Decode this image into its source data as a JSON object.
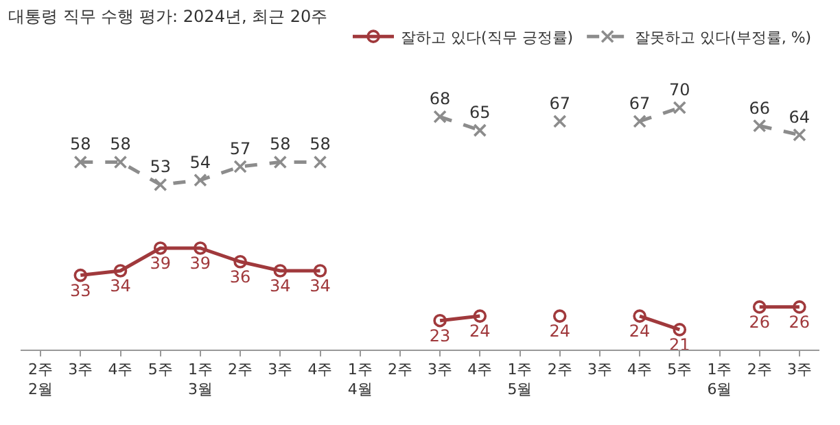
{
  "chart_data": {
    "type": "line",
    "title": "대통령 직무 수행 평가: 2024년, 최근 20주",
    "categories": [
      "2주\n2월",
      "3주",
      "4주",
      "5주",
      "1주\n3월",
      "2주",
      "3주",
      "4주",
      "1주\n4월",
      "2주",
      "3주",
      "4주",
      "1주\n5월",
      "2주",
      "3주",
      "4주",
      "5주",
      "1주\n6월",
      "2주",
      "3주"
    ],
    "series": [
      {
        "name": "잘하고 있다(직무 긍정률)",
        "color": "#a0393c",
        "marker": "circle",
        "line_style": "solid",
        "values": [
          null,
          33,
          34,
          39,
          39,
          36,
          34,
          34,
          null,
          null,
          23,
          24,
          null,
          24,
          null,
          24,
          21,
          null,
          26,
          26
        ]
      },
      {
        "name": "잘못하고 있다(부정률, %)",
        "color": "#8c8c8c",
        "marker": "cross",
        "line_style": "dashed",
        "values": [
          null,
          58,
          58,
          53,
          54,
          57,
          58,
          58,
          null,
          null,
          68,
          65,
          null,
          67,
          null,
          67,
          70,
          null,
          66,
          64
        ]
      }
    ],
    "data_labels": true,
    "grid": false,
    "legend": "top right"
  }
}
